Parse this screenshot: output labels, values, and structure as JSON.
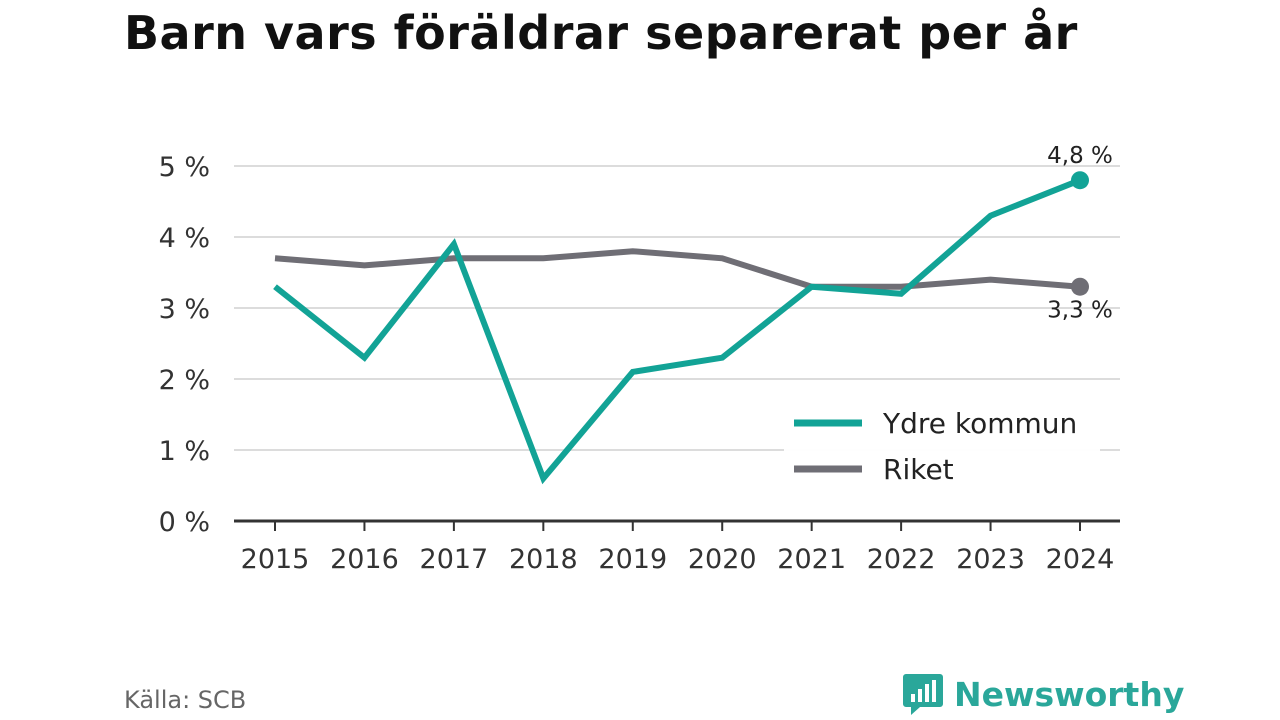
{
  "title": "Barn vars föräldrar separerat per år",
  "source": "Källa: SCB",
  "brand": {
    "name": "Newsworthy",
    "icon": "newsworthy-logo-icon",
    "color": "#2aa79a"
  },
  "chart_data": {
    "type": "line",
    "title": "Barn vars föräldrar separerat per år",
    "x": [
      "2015",
      "2016",
      "2017",
      "2018",
      "2019",
      "2020",
      "2021",
      "2022",
      "2023",
      "2024"
    ],
    "ylim": [
      0,
      5
    ],
    "yticks": [
      0,
      1,
      2,
      3,
      4,
      5
    ],
    "ytick_labels": [
      "0 %",
      "1 %",
      "2 %",
      "3 %",
      "4 %",
      "5 %"
    ],
    "grid": true,
    "legend": "bottom-right",
    "series": [
      {
        "name": "Ydre kommun",
        "color": "#12a396",
        "values": [
          3.3,
          2.3,
          3.9,
          0.6,
          2.1,
          2.3,
          3.3,
          3.2,
          4.3,
          4.8
        ],
        "end_label": "4,8 %"
      },
      {
        "name": "Riket",
        "color": "#6f6e75",
        "values": [
          3.7,
          3.6,
          3.7,
          3.7,
          3.8,
          3.7,
          3.3,
          3.3,
          3.4,
          3.3
        ],
        "end_label": "3,3 %"
      }
    ]
  }
}
